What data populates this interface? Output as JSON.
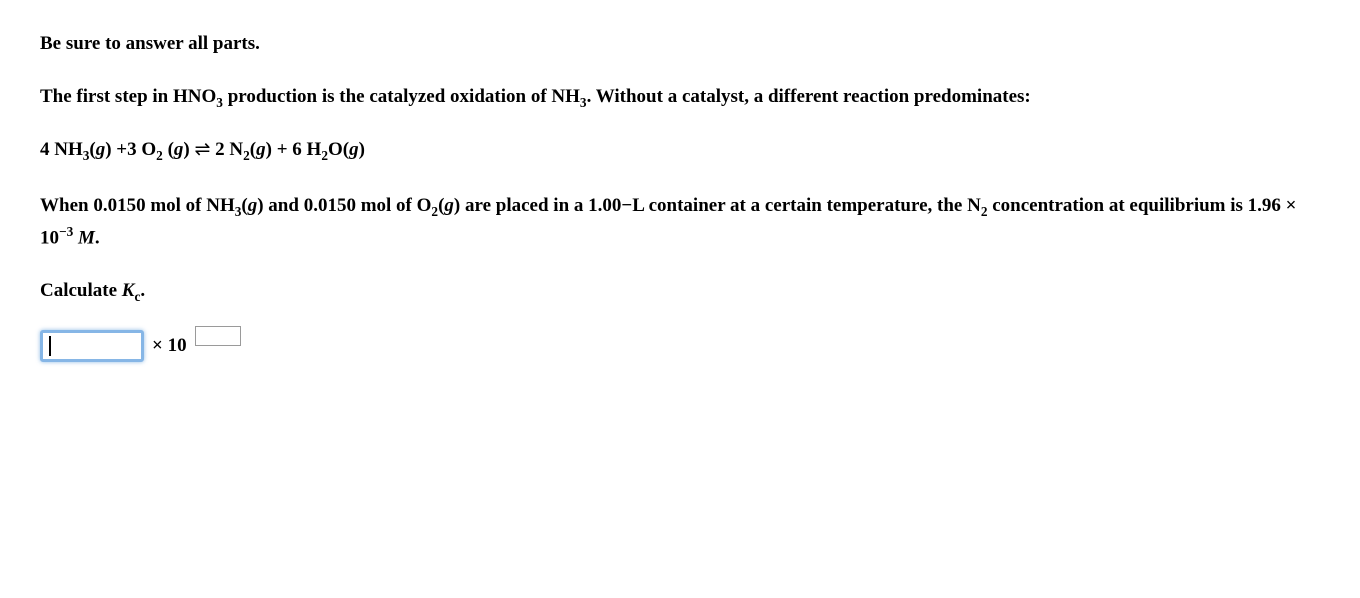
{
  "lines": {
    "l1": "Be sure to answer all parts.",
    "l2a": "The first step in HNO",
    "l2b": " production is the catalyzed oxidation of NH",
    "l2c": ". Without a catalyst, a different reaction predominates:",
    "eq_a": "4 NH",
    "eq_b": "(",
    "eq_c": ") +3 O",
    "eq_d": " (",
    "eq_e": ") ",
    "eq_f": " 2 N",
    "eq_g": "(",
    "eq_h": ") + 6 H",
    "eq_i": "O(",
    "eq_j": ")",
    "g": "g",
    "sub3": "3",
    "sub2": "2",
    "arrow": "⇌",
    "l3a": "When 0.0150 mol of NH",
    "l3b": "(",
    "l3c": ") and 0.0150 mol of O",
    "l3d": "(",
    "l3e": ") are placed in a 1.00−L container at a certain temperature, the N",
    "l3f": " concentration at equilibrium is 1.96 × 10",
    "supneg3": "−3",
    "l3g": " ",
    "M": "M",
    "period": ".",
    "l4a": "Calculate ",
    "K": "K",
    "subc": "c",
    "times10": "× 10"
  }
}
